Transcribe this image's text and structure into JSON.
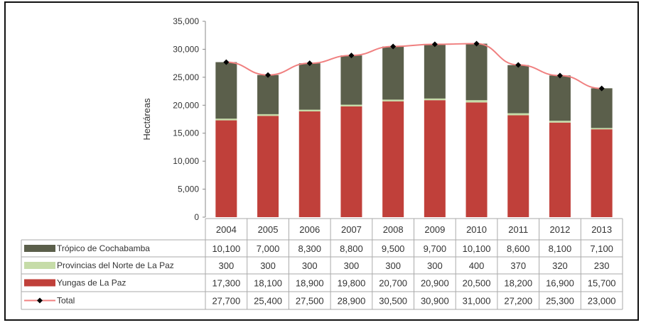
{
  "chart_data": {
    "type": "bar",
    "stacked": true,
    "title": "",
    "xlabel": "",
    "ylabel": "Hectáreas",
    "ylim": [
      0,
      35000
    ],
    "yticks": [
      "0",
      "5,000",
      "10,000",
      "15,000",
      "20,000",
      "25,000",
      "30,000",
      "35,000"
    ],
    "ytick_values": [
      0,
      5000,
      10000,
      15000,
      20000,
      25000,
      30000,
      35000
    ],
    "categories": [
      "2004",
      "2005",
      "2006",
      "2007",
      "2008",
      "2009",
      "2010",
      "2011",
      "2012",
      "2013"
    ],
    "series": [
      {
        "name": "Trópico de Cochabamba",
        "type": "bar",
        "color": "#5b5f4b",
        "values": [
          10100,
          7000,
          8300,
          8800,
          9500,
          9700,
          10100,
          8600,
          8100,
          7100
        ],
        "labels": [
          "10,100",
          "7,000",
          "8,300",
          "8,800",
          "9,500",
          "9,700",
          "10,100",
          "8,600",
          "8,100",
          "7,100"
        ]
      },
      {
        "name": "Provincias del Norte de La Paz",
        "type": "bar",
        "color": "#c6dca8",
        "values": [
          300,
          300,
          300,
          300,
          300,
          300,
          400,
          370,
          320,
          230
        ],
        "labels": [
          "300",
          "300",
          "300",
          "300",
          "300",
          "300",
          "400",
          "370",
          "320",
          "230"
        ]
      },
      {
        "name": "Yungas de La Paz",
        "type": "bar",
        "color": "#c0403a",
        "values": [
          17300,
          18100,
          18900,
          19800,
          20700,
          20900,
          20500,
          18200,
          16900,
          15700
        ],
        "labels": [
          "17,300",
          "18,100",
          "18,900",
          "19,800",
          "20,700",
          "20,900",
          "20,500",
          "18,200",
          "16,900",
          "15,700"
        ]
      },
      {
        "name": "Total",
        "type": "line",
        "color": "#f08080",
        "values": [
          27700,
          25400,
          27500,
          28900,
          30500,
          30900,
          31000,
          27200,
          25300,
          23000
        ],
        "labels": [
          "27,700",
          "25,400",
          "27,500",
          "28,900",
          "30,500",
          "30,900",
          "31,000",
          "27,200",
          "25,300",
          "23,000"
        ]
      }
    ],
    "data_table": true,
    "grid": false
  }
}
